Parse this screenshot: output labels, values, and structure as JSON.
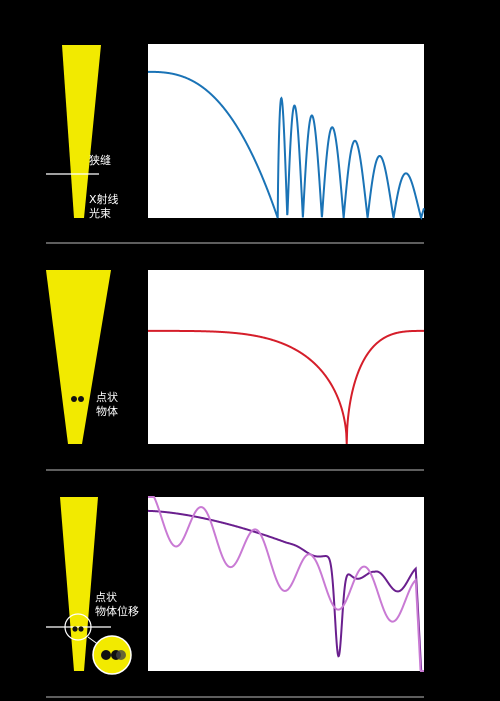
{
  "colors": {
    "background": "#000000",
    "beam": "#f2ea00",
    "panel": "#ffffff",
    "divider": "#bbbbbb",
    "curve_slit": "#1a73b6",
    "curve_point": "#d51e2a",
    "curve_displaced_a": "#6a1f8e",
    "curve_displaced_b": "#c97ad4",
    "marker": "#ffffff",
    "dot": "#111111"
  },
  "rows": [
    {
      "object": "slit",
      "labels": [
        "狭缝",
        "X射线",
        "光束"
      ]
    },
    {
      "object": "point",
      "labels": [
        "点状",
        "物体"
      ]
    },
    {
      "object": "displaced-point",
      "labels": [
        "点状",
        "物体位移"
      ]
    }
  ],
  "icons": {
    "beam": "x-ray-beam-taper-icon",
    "slit": "slit-line-icon",
    "dots": "point-object-dots-icon",
    "magnifier": "magnifier-circle-icon"
  }
}
